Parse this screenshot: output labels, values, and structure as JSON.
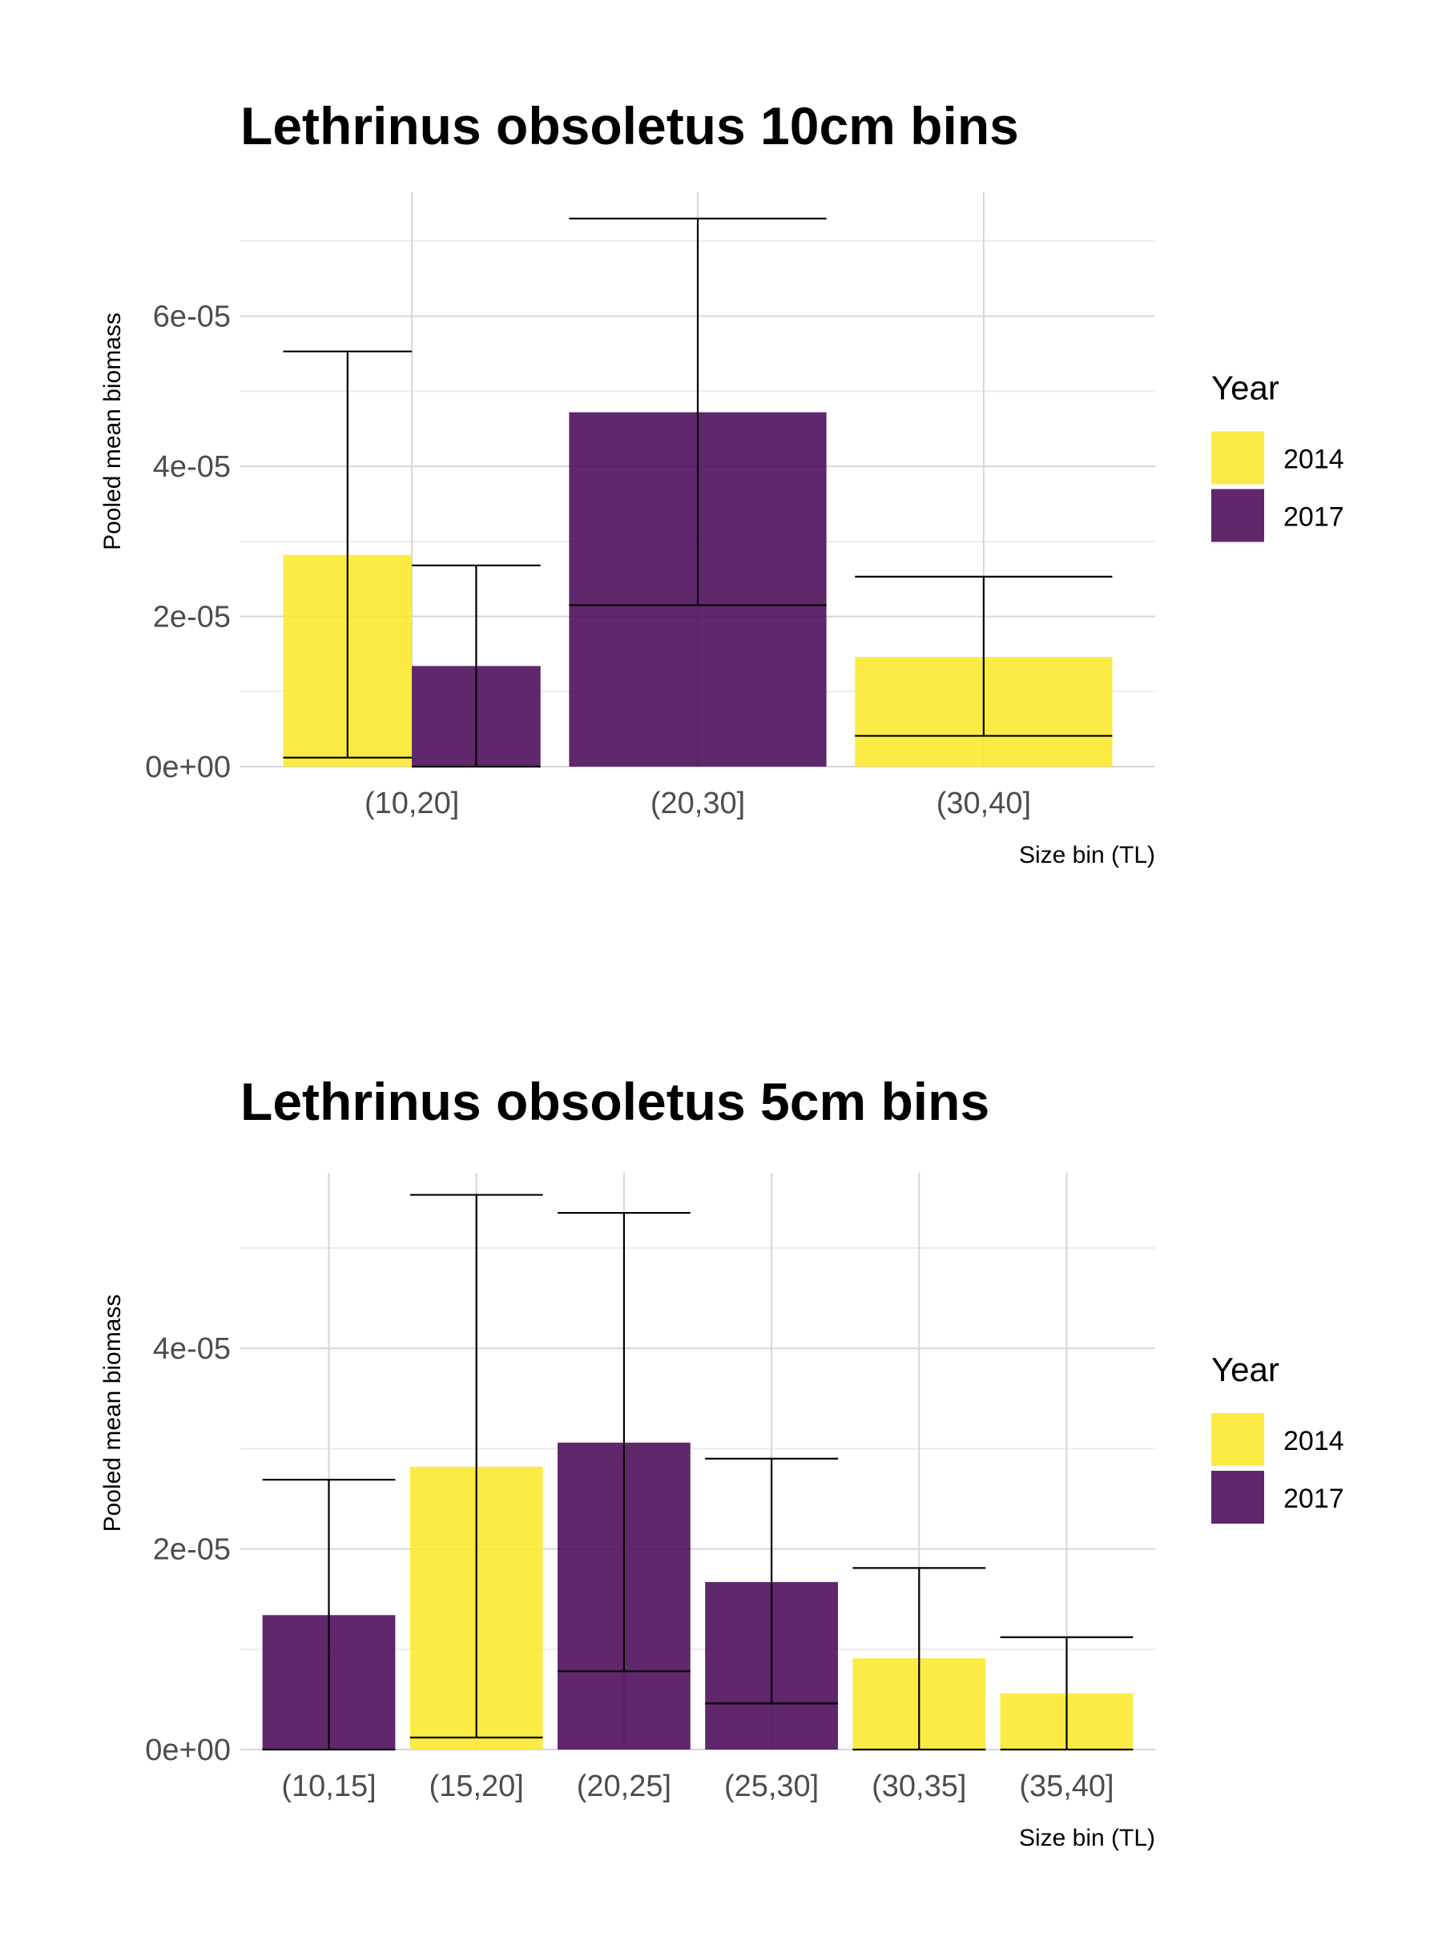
{
  "chart_data": [
    {
      "type": "bar",
      "title": "Lethrinus obsoletus 10cm bins",
      "xlabel": "Size bin (TL)",
      "ylabel": "Pooled mean biomass",
      "categories": [
        "(10,20]",
        "(20,30]",
        "(30,40]"
      ],
      "series": [
        {
          "name": "2014",
          "color": "#fde725",
          "values": [
            2.82e-05,
            null,
            1.46e-05
          ],
          "err_low": [
            1.2e-06,
            null,
            4.1e-06
          ],
          "err_high": [
            5.53e-05,
            null,
            2.53e-05
          ]
        },
        {
          "name": "2017",
          "color": "#440154",
          "values": [
            1.34e-05,
            4.72e-05,
            null
          ],
          "err_low": [
            0.0,
            2.15e-05,
            null
          ],
          "err_high": [
            2.68e-05,
            7.3e-05,
            null
          ]
        }
      ],
      "ylim": [
        0,
        7.65e-05
      ],
      "yticks": [
        0,
        2e-05,
        4e-05,
        6e-05
      ],
      "ytick_labels": [
        "0e+00",
        "2e-05",
        "4e-05",
        "6e-05"
      ],
      "grid": true,
      "legend": {
        "title": "Year",
        "position": "right",
        "entries": [
          "2014",
          "2017"
        ]
      }
    },
    {
      "type": "bar",
      "title": "Lethrinus obsoletus 5cm bins",
      "xlabel": "Size bin (TL)",
      "ylabel": "Pooled mean biomass",
      "categories": [
        "(10,15]",
        "(15,20]",
        "(20,25]",
        "(25,30]",
        "(30,35]",
        "(35,40]"
      ],
      "series": [
        {
          "name": "2014",
          "color": "#fde725",
          "values": [
            null,
            2.82e-05,
            null,
            null,
            9.1e-06,
            5.6e-06
          ],
          "err_low": [
            null,
            1.2e-06,
            null,
            null,
            0.0,
            0.0
          ],
          "err_high": [
            null,
            5.53e-05,
            null,
            null,
            1.81e-05,
            1.12e-05
          ]
        },
        {
          "name": "2017",
          "color": "#440154",
          "values": [
            1.34e-05,
            null,
            3.06e-05,
            1.67e-05,
            null,
            null
          ],
          "err_low": [
            0.0,
            null,
            7.8e-06,
            4.6e-06,
            null,
            null
          ],
          "err_high": [
            2.69e-05,
            null,
            5.35e-05,
            2.9e-05,
            null,
            null
          ]
        }
      ],
      "ylim": [
        0,
        5.75e-05
      ],
      "yticks": [
        0,
        2e-05,
        4e-05
      ],
      "ytick_labels": [
        "0e+00",
        "2e-05",
        "4e-05"
      ],
      "grid": true,
      "legend": {
        "title": "Year",
        "position": "right",
        "entries": [
          "2014",
          "2017"
        ]
      }
    }
  ]
}
